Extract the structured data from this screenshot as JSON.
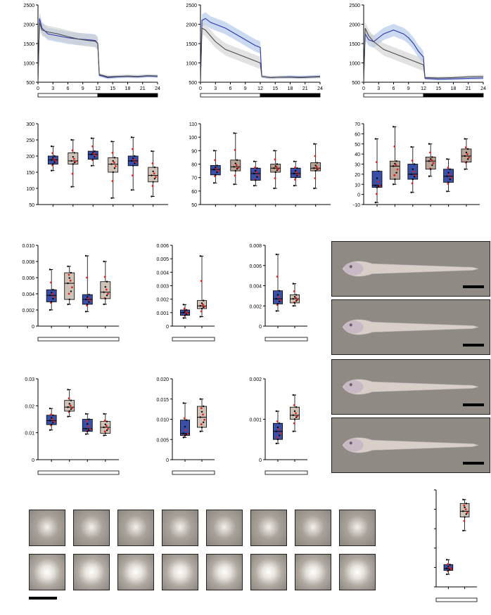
{
  "colors": {
    "blue_series": "#2b35a8",
    "blue_band": "#a9c1e6",
    "grey_series": "#4a4a4a",
    "grey_band": "#cfcfcf",
    "box_blue": "#3a4fa8",
    "box_tan": "#cfc3b8",
    "box_tan_dark": "#b8a597",
    "dot_red": "#e02020",
    "dot_black": "#000000",
    "photo_bg": "#8f8a84"
  },
  "chart_data": [
    {
      "id": "A1",
      "type": "line",
      "x_ticks": [
        0,
        3,
        6,
        9,
        12,
        15,
        18,
        21,
        24
      ],
      "y_ticks": [
        500,
        1000,
        1500,
        2000,
        2500
      ],
      "ylim": [
        500,
        2500
      ],
      "xlim": [
        0,
        24
      ],
      "series": [
        {
          "color": "blue",
          "x": [
            0,
            0.3,
            0.8,
            2,
            4,
            6,
            8,
            10,
            11.5,
            12,
            12.3,
            14,
            16,
            18,
            20,
            22,
            24
          ],
          "y": [
            500,
            2150,
            1900,
            1750,
            1700,
            1650,
            1620,
            1600,
            1580,
            1500,
            680,
            620,
            640,
            650,
            640,
            660,
            650
          ]
        },
        {
          "color": "grey",
          "x": [
            0,
            0.3,
            0.8,
            2,
            4,
            6,
            8,
            10,
            11.5,
            12,
            12.3,
            14,
            16,
            18,
            20,
            22,
            24
          ],
          "y": [
            500,
            2050,
            1850,
            1800,
            1750,
            1680,
            1620,
            1580,
            1560,
            1500,
            700,
            640,
            650,
            660,
            650,
            670,
            660
          ]
        }
      ],
      "light_bar": {
        "light_until": 12,
        "dark_from": 12
      }
    },
    {
      "id": "A2",
      "type": "line",
      "x_ticks": [
        0,
        3,
        6,
        9,
        12,
        15,
        18,
        21,
        24
      ],
      "y_ticks": [
        500,
        1000,
        1500,
        2000,
        2500
      ],
      "ylim": [
        500,
        2500
      ],
      "xlim": [
        0,
        24
      ],
      "series": [
        {
          "color": "blue",
          "x": [
            0,
            0.3,
            1,
            2,
            3,
            5,
            7,
            9,
            11,
            12,
            12.3,
            14,
            16,
            18,
            20,
            22,
            24
          ],
          "y": [
            500,
            2100,
            2150,
            2050,
            2000,
            1900,
            1750,
            1600,
            1450,
            1400,
            650,
            620,
            630,
            640,
            630,
            640,
            650
          ]
        },
        {
          "color": "grey",
          "x": [
            0,
            0.3,
            1,
            2,
            3,
            5,
            7,
            9,
            11,
            12,
            12.3,
            14,
            16,
            18,
            20,
            22,
            24
          ],
          "y": [
            500,
            1900,
            1850,
            1700,
            1550,
            1350,
            1250,
            1150,
            1050,
            1000,
            650,
            620,
            630,
            630,
            620,
            630,
            640
          ]
        }
      ],
      "light_bar": {
        "light_until": 12,
        "dark_from": 12
      }
    },
    {
      "id": "A3",
      "type": "line",
      "x_ticks": [
        0,
        3,
        6,
        9,
        12,
        15,
        18,
        21,
        24
      ],
      "y_ticks": [
        500,
        1000,
        1500,
        2000,
        2500
      ],
      "ylim": [
        500,
        2500
      ],
      "xlim": [
        0,
        24
      ],
      "series": [
        {
          "color": "blue",
          "x": [
            0,
            0.3,
            1,
            2,
            3,
            4,
            5,
            6,
            7,
            8,
            9,
            10,
            11,
            12,
            12.3,
            15,
            18,
            21,
            24
          ],
          "y": [
            500,
            1750,
            1600,
            1550,
            1650,
            1750,
            1800,
            1850,
            1800,
            1750,
            1650,
            1500,
            1300,
            1150,
            600,
            580,
            590,
            600,
            610
          ]
        },
        {
          "color": "grey",
          "x": [
            0,
            0.3,
            1,
            2,
            3,
            4,
            5,
            6,
            7,
            8,
            9,
            10,
            11,
            12,
            12.3,
            15,
            18,
            21,
            24
          ],
          "y": [
            500,
            1900,
            1700,
            1550,
            1450,
            1350,
            1300,
            1250,
            1200,
            1150,
            1100,
            1050,
            1000,
            950,
            620,
            610,
            620,
            640,
            650
          ]
        }
      ],
      "light_bar": {
        "light_until": 12,
        "dark_from": 12
      }
    },
    {
      "id": "B1",
      "type": "box",
      "y_ticks": [
        50,
        100,
        150,
        200,
        250,
        300
      ],
      "ylim": [
        50,
        300
      ],
      "boxes": [
        {
          "color": "blue",
          "min": 155,
          "q1": 175,
          "median": 188,
          "q3": 200,
          "max": 230
        },
        {
          "color": "tan",
          "min": 105,
          "q1": 175,
          "median": 185,
          "q3": 210,
          "max": 250
        },
        {
          "color": "blue",
          "min": 170,
          "q1": 190,
          "median": 205,
          "q3": 215,
          "max": 255
        },
        {
          "color": "tan",
          "min": 70,
          "q1": 150,
          "median": 175,
          "q3": 195,
          "max": 245
        },
        {
          "color": "blue",
          "min": 95,
          "q1": 170,
          "median": 185,
          "q3": 200,
          "max": 258
        },
        {
          "color": "tan",
          "min": 75,
          "q1": 120,
          "median": 140,
          "q3": 165,
          "max": 215
        }
      ]
    },
    {
      "id": "B2",
      "type": "box",
      "y_ticks": [
        50,
        60,
        70,
        80,
        90,
        100,
        110
      ],
      "ylim": [
        50,
        110
      ],
      "boxes": [
        {
          "color": "blue",
          "min": 66,
          "q1": 72,
          "median": 76,
          "q3": 79,
          "max": 90
        },
        {
          "color": "tan_dark",
          "min": 65,
          "q1": 75,
          "median": 78,
          "q3": 83,
          "max": 103
        },
        {
          "color": "blue",
          "min": 64,
          "q1": 68,
          "median": 73,
          "q3": 77,
          "max": 82
        },
        {
          "color": "tan_dark",
          "min": 62,
          "q1": 74,
          "median": 77,
          "q3": 80,
          "max": 90
        },
        {
          "color": "blue",
          "min": 64,
          "q1": 70,
          "median": 73,
          "q3": 77,
          "max": 82
        },
        {
          "color": "tan_dark",
          "min": 62,
          "q1": 75,
          "median": 77,
          "q3": 81,
          "max": 95
        }
      ]
    },
    {
      "id": "B3",
      "type": "box",
      "y_ticks": [
        -10,
        0,
        10,
        20,
        30,
        40,
        50,
        60,
        70
      ],
      "ylim": [
        -10,
        70
      ],
      "boxes": [
        {
          "color": "blue",
          "min": -8,
          "q1": 7,
          "median": 9,
          "q3": 23,
          "max": 55
        },
        {
          "color": "tan_dark",
          "min": 10,
          "q1": 15,
          "median": 28,
          "q3": 33,
          "max": 67
        },
        {
          "color": "blue",
          "min": 2,
          "q1": 15,
          "median": 20,
          "q3": 30,
          "max": 47
        },
        {
          "color": "tan_dark",
          "min": 18,
          "q1": 25,
          "median": 33,
          "q3": 37,
          "max": 50
        },
        {
          "color": "blue",
          "min": 3,
          "q1": 12,
          "median": 18,
          "q3": 25,
          "max": 35
        },
        {
          "color": "tan_dark",
          "min": 25,
          "q1": 32,
          "median": 38,
          "q3": 45,
          "max": 55
        }
      ]
    },
    {
      "id": "C1",
      "type": "box",
      "y_ticks": [
        "0",
        "0.002",
        "0.004",
        "0.006",
        "0.008",
        "0.010"
      ],
      "ylim": [
        0,
        0.01
      ],
      "boxes": [
        {
          "color": "blue",
          "min": 0.002,
          "q1": 0.003,
          "median": 0.0038,
          "q3": 0.0045,
          "max": 0.007
        },
        {
          "color": "tan",
          "min": 0.0027,
          "q1": 0.0033,
          "median": 0.0053,
          "q3": 0.0066,
          "max": 0.0074
        },
        {
          "color": "blue",
          "min": 0.0018,
          "q1": 0.0027,
          "median": 0.0033,
          "q3": 0.0039,
          "max": 0.0087
        },
        {
          "color": "tan",
          "min": 0.0027,
          "q1": 0.0034,
          "median": 0.0042,
          "q3": 0.0055,
          "max": 0.008
        }
      ]
    },
    {
      "id": "C2",
      "type": "box",
      "y_ticks": [
        "0",
        "0.001",
        "0.002",
        "0.003",
        "0.004",
        "0.005",
        "0.006"
      ],
      "ylim": [
        0,
        0.006
      ],
      "boxes": [
        {
          "color": "blue",
          "min": 0.0006,
          "q1": 0.0008,
          "median": 0.001,
          "q3": 0.0012,
          "max": 0.0016
        },
        {
          "color": "tan",
          "min": 0.0007,
          "q1": 0.0013,
          "median": 0.0015,
          "q3": 0.0019,
          "max": 0.0052
        }
      ]
    },
    {
      "id": "C3",
      "type": "box",
      "y_ticks": [
        "0",
        "0.002",
        "0.004",
        "0.006",
        "0.008"
      ],
      "ylim": [
        0,
        0.008
      ],
      "boxes": [
        {
          "color": "blue",
          "min": 0.0015,
          "q1": 0.0022,
          "median": 0.0027,
          "q3": 0.0035,
          "max": 0.0071
        },
        {
          "color": "tan",
          "min": 0.002,
          "q1": 0.0023,
          "median": 0.0027,
          "q3": 0.0031,
          "max": 0.0042
        }
      ]
    },
    {
      "id": "D1",
      "type": "box",
      "y_ticks": [
        "0",
        "0.01",
        "0.02",
        "0.03"
      ],
      "ylim": [
        0,
        0.03
      ],
      "boxes": [
        {
          "color": "blue",
          "min": 0.011,
          "q1": 0.013,
          "median": 0.0145,
          "q3": 0.0165,
          "max": 0.019
        },
        {
          "color": "tan",
          "min": 0.016,
          "q1": 0.018,
          "median": 0.0195,
          "q3": 0.022,
          "max": 0.026
        },
        {
          "color": "blue",
          "min": 0.0095,
          "q1": 0.0105,
          "median": 0.0115,
          "q3": 0.015,
          "max": 0.017
        },
        {
          "color": "tan",
          "min": 0.009,
          "q1": 0.0098,
          "median": 0.012,
          "q3": 0.0142,
          "max": 0.017
        }
      ]
    },
    {
      "id": "D2",
      "type": "box",
      "y_ticks": [
        "0",
        "0.005",
        "0.010",
        "0.015",
        "0.020"
      ],
      "ylim": [
        0,
        0.02
      ],
      "boxes": [
        {
          "color": "blue",
          "min": 0.0055,
          "q1": 0.006,
          "median": 0.0065,
          "q3": 0.0098,
          "max": 0.014
        },
        {
          "color": "tan",
          "min": 0.007,
          "q1": 0.008,
          "median": 0.0105,
          "q3": 0.0132,
          "max": 0.015
        }
      ]
    },
    {
      "id": "D3",
      "type": "box",
      "y_ticks": [
        "0",
        "0.001",
        "0.002"
      ],
      "ylim": [
        0,
        0.002
      ],
      "boxes": [
        {
          "color": "blue",
          "min": 0.0004,
          "q1": 0.0005,
          "median": 0.0007,
          "q3": 0.0009,
          "max": 0.0012
        },
        {
          "color": "tan",
          "min": 0.0007,
          "q1": 0.001,
          "median": 0.0011,
          "q3": 0.0013,
          "max": 0.0016
        }
      ]
    },
    {
      "id": "E1",
      "type": "box",
      "y_ticks": [],
      "ylim": [
        0,
        10
      ],
      "boxes": [
        {
          "color": "blue",
          "min": 1.3,
          "q1": 1.7,
          "median": 1.9,
          "q3": 2.3,
          "max": 2.8
        },
        {
          "color": "tan",
          "min": 5.8,
          "q1": 7.2,
          "median": 7.8,
          "q3": 8.6,
          "max": 9.0
        }
      ]
    }
  ],
  "photos": [
    {
      "name": "fish-photo-1"
    },
    {
      "name": "fish-photo-2"
    },
    {
      "name": "fish-photo-3"
    },
    {
      "name": "fish-photo-4"
    }
  ],
  "thumbnails": {
    "row1": 8,
    "row2": 8
  }
}
